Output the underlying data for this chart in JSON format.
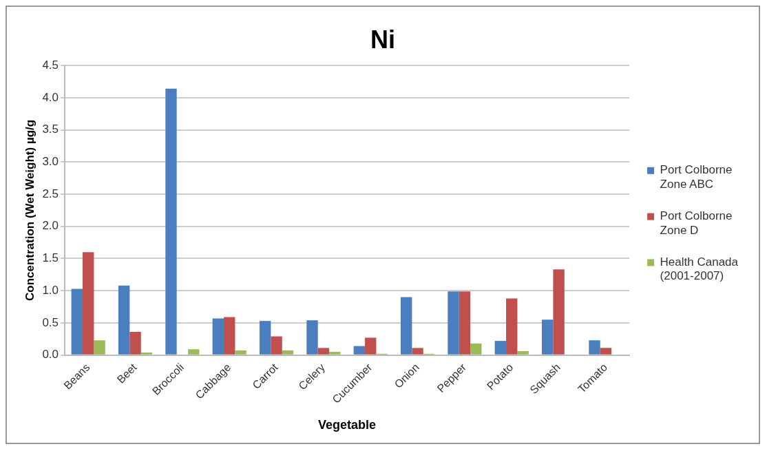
{
  "chart_data": {
    "type": "bar",
    "title": "Ni",
    "xlabel": "Vegetable",
    "ylabel": "Concentration (Wet Weight) µg/g",
    "categories": [
      "Beans",
      "Beet",
      "Broccoli",
      "Cabbage",
      "Carrot",
      "Celery",
      "Cucumber",
      "Onion",
      "Pepper",
      "Potato",
      "Squash",
      "Tomato"
    ],
    "series": [
      {
        "name": "Port Colborne Zone ABC",
        "color": "#4a7ebf",
        "values": [
          1.03,
          1.08,
          4.14,
          0.57,
          0.53,
          0.54,
          0.14,
          0.9,
          0.99,
          0.22,
          0.55,
          0.23
        ]
      },
      {
        "name": "Port Colborne Zone D",
        "color": "#c0504d",
        "values": [
          1.6,
          0.36,
          0,
          0.59,
          0.29,
          0.11,
          0.27,
          0.11,
          0.99,
          0.88,
          1.33,
          0.11
        ]
      },
      {
        "name": "Health Canada (2001-2007)",
        "color": "#9bbb59",
        "values": [
          0.23,
          0.04,
          0.09,
          0.07,
          0.07,
          0.05,
          0.02,
          0.02,
          0.18,
          0.06,
          0,
          0
        ]
      }
    ],
    "ylim": [
      0,
      4.5
    ],
    "yticks": [
      {
        "value": 0,
        "label": "0.0"
      },
      {
        "value": 0.5,
        "label": "0.5"
      },
      {
        "value": 1,
        "label": "1.0"
      },
      {
        "value": 1.5,
        "label": "1.5"
      },
      {
        "value": 2,
        "label": "2.0"
      },
      {
        "value": 2.5,
        "label": "2.5"
      },
      {
        "value": 3,
        "label": "3.0"
      },
      {
        "value": 3.5,
        "label": "3.5"
      },
      {
        "value": 4,
        "label": "4.0"
      },
      {
        "value": 4.5,
        "label": "4.5"
      }
    ],
    "grid": "y",
    "legend": "right"
  }
}
